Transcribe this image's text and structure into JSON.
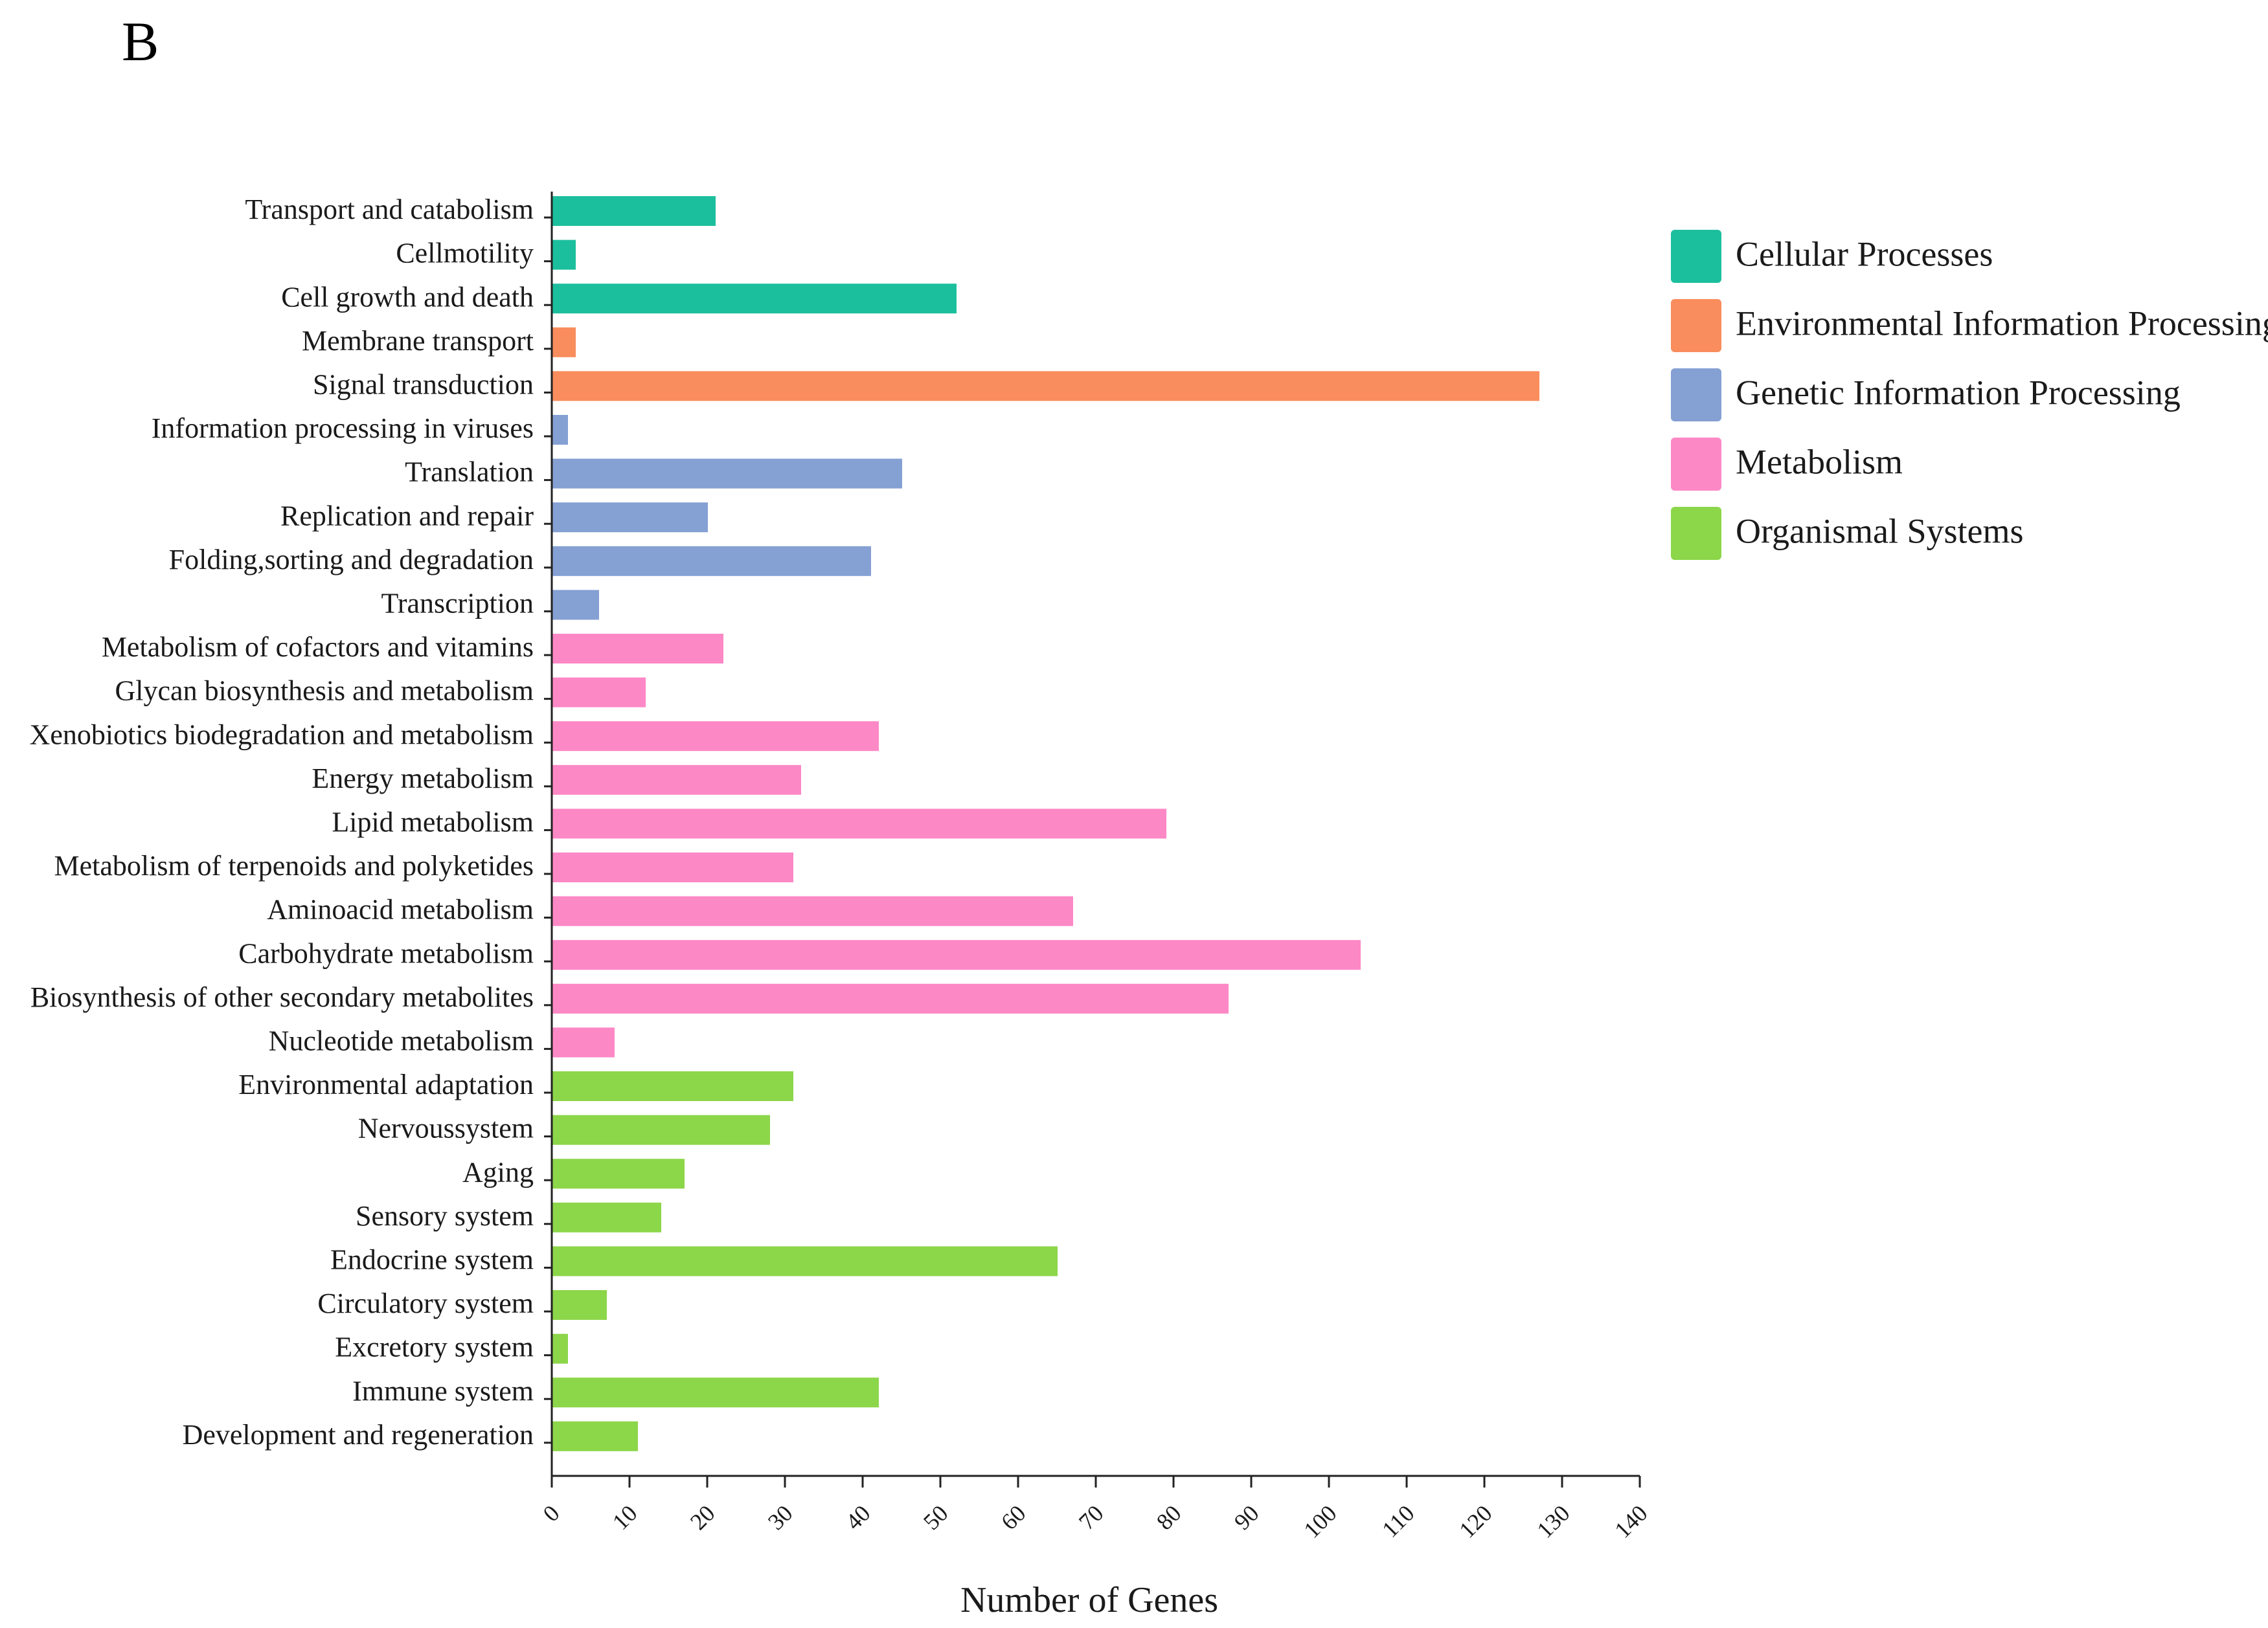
{
  "panel_label": "B",
  "chart_data": {
    "type": "bar",
    "orientation": "horizontal",
    "title": "",
    "xlabel": "Number of Genes",
    "ylabel": "",
    "xlim": [
      0,
      140
    ],
    "xticks": [
      0,
      10,
      20,
      30,
      40,
      50,
      60,
      70,
      80,
      90,
      100,
      110,
      120,
      130,
      140
    ],
    "grid": false,
    "legend_position": "right",
    "groups": [
      {
        "name": "Cellular Processes",
        "color": "#1cbf9d"
      },
      {
        "name": "Environmental Information Processing",
        "color": "#f98d5d"
      },
      {
        "name": "Genetic Information Processing",
        "color": "#85a0d3"
      },
      {
        "name": "Metabolism",
        "color": "#fd88c6"
      },
      {
        "name": "Organismal Systems",
        "color": "#8cd64a"
      }
    ],
    "bars": [
      {
        "category": "Transport and catabolism",
        "value": 21,
        "group": 0
      },
      {
        "category": "Cellmotility",
        "value": 3,
        "group": 0
      },
      {
        "category": "Cell growth and death",
        "value": 52,
        "group": 0
      },
      {
        "category": "Membrane transport",
        "value": 3,
        "group": 1
      },
      {
        "category": "Signal transduction",
        "value": 127,
        "group": 1
      },
      {
        "category": "Information processing in viruses",
        "value": 2,
        "group": 2
      },
      {
        "category": "Translation",
        "value": 45,
        "group": 2
      },
      {
        "category": "Replication and repair",
        "value": 20,
        "group": 2
      },
      {
        "category": "Folding,sorting and degradation",
        "value": 41,
        "group": 2
      },
      {
        "category": "Transcription",
        "value": 6,
        "group": 2
      },
      {
        "category": "Metabolism of cofactors and vitamins",
        "value": 22,
        "group": 3
      },
      {
        "category": "Glycan biosynthesis and metabolism",
        "value": 12,
        "group": 3
      },
      {
        "category": "Xenobiotics biodegradation and metabolism",
        "value": 42,
        "group": 3
      },
      {
        "category": "Energy metabolism",
        "value": 32,
        "group": 3
      },
      {
        "category": "Lipid metabolism",
        "value": 79,
        "group": 3
      },
      {
        "category": "Metabolism of terpenoids and polyketides",
        "value": 31,
        "group": 3
      },
      {
        "category": "Aminoacid metabolism",
        "value": 67,
        "group": 3
      },
      {
        "category": "Carbohydrate metabolism",
        "value": 104,
        "group": 3
      },
      {
        "category": "Biosynthesis of other secondary metabolites",
        "value": 87,
        "group": 3
      },
      {
        "category": "Nucleotide metabolism",
        "value": 8,
        "group": 3
      },
      {
        "category": "Environmental adaptation",
        "value": 31,
        "group": 4
      },
      {
        "category": "Nervoussystem",
        "value": 28,
        "group": 4
      },
      {
        "category": "Aging",
        "value": 17,
        "group": 4
      },
      {
        "category": "Sensory system",
        "value": 14,
        "group": 4
      },
      {
        "category": "Endocrine system",
        "value": 65,
        "group": 4
      },
      {
        "category": "Circulatory system",
        "value": 7,
        "group": 4
      },
      {
        "category": "Excretory system",
        "value": 2,
        "group": 4
      },
      {
        "category": "Immune system",
        "value": 42,
        "group": 4
      },
      {
        "category": "Development and regeneration",
        "value": 11,
        "group": 4
      }
    ]
  }
}
